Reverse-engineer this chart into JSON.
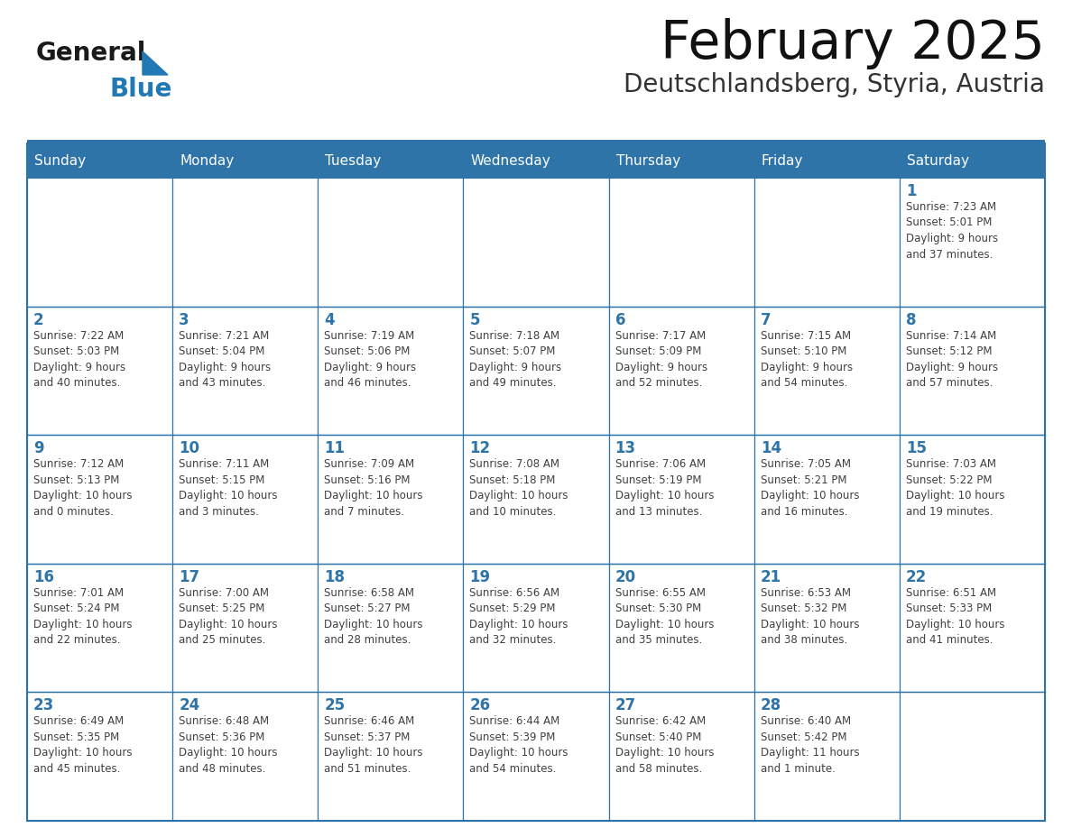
{
  "title": "February 2025",
  "subtitle": "Deutschlandsberg, Styria, Austria",
  "days_of_week": [
    "Sunday",
    "Monday",
    "Tuesday",
    "Wednesday",
    "Thursday",
    "Friday",
    "Saturday"
  ],
  "header_bg": "#2E74A8",
  "header_text": "#FFFFFF",
  "cell_bg": "#FFFFFF",
  "border_color": "#2E74A8",
  "text_color": "#404040",
  "day_num_color": "#2E74A8",
  "logo_general_color": "#1a1a1a",
  "logo_blue_color": "#2079B4",
  "calendar_data": [
    [
      {
        "day": null,
        "info": ""
      },
      {
        "day": null,
        "info": ""
      },
      {
        "day": null,
        "info": ""
      },
      {
        "day": null,
        "info": ""
      },
      {
        "day": null,
        "info": ""
      },
      {
        "day": null,
        "info": ""
      },
      {
        "day": 1,
        "info": "Sunrise: 7:23 AM\nSunset: 5:01 PM\nDaylight: 9 hours\nand 37 minutes."
      }
    ],
    [
      {
        "day": 2,
        "info": "Sunrise: 7:22 AM\nSunset: 5:03 PM\nDaylight: 9 hours\nand 40 minutes."
      },
      {
        "day": 3,
        "info": "Sunrise: 7:21 AM\nSunset: 5:04 PM\nDaylight: 9 hours\nand 43 minutes."
      },
      {
        "day": 4,
        "info": "Sunrise: 7:19 AM\nSunset: 5:06 PM\nDaylight: 9 hours\nand 46 minutes."
      },
      {
        "day": 5,
        "info": "Sunrise: 7:18 AM\nSunset: 5:07 PM\nDaylight: 9 hours\nand 49 minutes."
      },
      {
        "day": 6,
        "info": "Sunrise: 7:17 AM\nSunset: 5:09 PM\nDaylight: 9 hours\nand 52 minutes."
      },
      {
        "day": 7,
        "info": "Sunrise: 7:15 AM\nSunset: 5:10 PM\nDaylight: 9 hours\nand 54 minutes."
      },
      {
        "day": 8,
        "info": "Sunrise: 7:14 AM\nSunset: 5:12 PM\nDaylight: 9 hours\nand 57 minutes."
      }
    ],
    [
      {
        "day": 9,
        "info": "Sunrise: 7:12 AM\nSunset: 5:13 PM\nDaylight: 10 hours\nand 0 minutes."
      },
      {
        "day": 10,
        "info": "Sunrise: 7:11 AM\nSunset: 5:15 PM\nDaylight: 10 hours\nand 3 minutes."
      },
      {
        "day": 11,
        "info": "Sunrise: 7:09 AM\nSunset: 5:16 PM\nDaylight: 10 hours\nand 7 minutes."
      },
      {
        "day": 12,
        "info": "Sunrise: 7:08 AM\nSunset: 5:18 PM\nDaylight: 10 hours\nand 10 minutes."
      },
      {
        "day": 13,
        "info": "Sunrise: 7:06 AM\nSunset: 5:19 PM\nDaylight: 10 hours\nand 13 minutes."
      },
      {
        "day": 14,
        "info": "Sunrise: 7:05 AM\nSunset: 5:21 PM\nDaylight: 10 hours\nand 16 minutes."
      },
      {
        "day": 15,
        "info": "Sunrise: 7:03 AM\nSunset: 5:22 PM\nDaylight: 10 hours\nand 19 minutes."
      }
    ],
    [
      {
        "day": 16,
        "info": "Sunrise: 7:01 AM\nSunset: 5:24 PM\nDaylight: 10 hours\nand 22 minutes."
      },
      {
        "day": 17,
        "info": "Sunrise: 7:00 AM\nSunset: 5:25 PM\nDaylight: 10 hours\nand 25 minutes."
      },
      {
        "day": 18,
        "info": "Sunrise: 6:58 AM\nSunset: 5:27 PM\nDaylight: 10 hours\nand 28 minutes."
      },
      {
        "day": 19,
        "info": "Sunrise: 6:56 AM\nSunset: 5:29 PM\nDaylight: 10 hours\nand 32 minutes."
      },
      {
        "day": 20,
        "info": "Sunrise: 6:55 AM\nSunset: 5:30 PM\nDaylight: 10 hours\nand 35 minutes."
      },
      {
        "day": 21,
        "info": "Sunrise: 6:53 AM\nSunset: 5:32 PM\nDaylight: 10 hours\nand 38 minutes."
      },
      {
        "day": 22,
        "info": "Sunrise: 6:51 AM\nSunset: 5:33 PM\nDaylight: 10 hours\nand 41 minutes."
      }
    ],
    [
      {
        "day": 23,
        "info": "Sunrise: 6:49 AM\nSunset: 5:35 PM\nDaylight: 10 hours\nand 45 minutes."
      },
      {
        "day": 24,
        "info": "Sunrise: 6:48 AM\nSunset: 5:36 PM\nDaylight: 10 hours\nand 48 minutes."
      },
      {
        "day": 25,
        "info": "Sunrise: 6:46 AM\nSunset: 5:37 PM\nDaylight: 10 hours\nand 51 minutes."
      },
      {
        "day": 26,
        "info": "Sunrise: 6:44 AM\nSunset: 5:39 PM\nDaylight: 10 hours\nand 54 minutes."
      },
      {
        "day": 27,
        "info": "Sunrise: 6:42 AM\nSunset: 5:40 PM\nDaylight: 10 hours\nand 58 minutes."
      },
      {
        "day": 28,
        "info": "Sunrise: 6:40 AM\nSunset: 5:42 PM\nDaylight: 11 hours\nand 1 minute."
      },
      {
        "day": null,
        "info": ""
      }
    ]
  ]
}
